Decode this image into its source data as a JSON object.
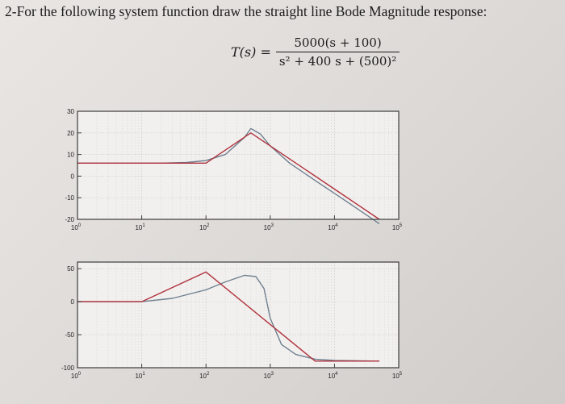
{
  "question": "2-For the following system function draw the straight line Bode Magnitude response:",
  "transfer_function": {
    "lhs": "T(s) =",
    "numerator": "5000(s + 100)",
    "denominator": "s² + 400 s + (500)²"
  },
  "colors": {
    "exact": "#6f8091",
    "asymptote": "#b0323e",
    "frame": "#3c3c3c",
    "grid": "#c8c8c8"
  },
  "chart_data": [
    {
      "type": "line",
      "xscale": "log",
      "xlim": [
        1,
        100000
      ],
      "ylim": [
        -20,
        30
      ],
      "x_ticks": [
        "10",
        "10",
        "10",
        "10",
        "10",
        "10"
      ],
      "x_tick_exponents": [
        "0",
        "1",
        "2",
        "3",
        "4",
        "5"
      ],
      "y_ticks": [
        "30",
        "20",
        "10",
        "0",
        "-10",
        "-20"
      ],
      "grid": true,
      "series": [
        {
          "x": [
            1,
            20,
            50,
            100,
            200,
            400,
            500,
            700,
            1000,
            2000,
            5000,
            10000,
            20000,
            50000
          ],
          "values": [
            6,
            6,
            6.3,
            7.2,
            10,
            18,
            22,
            19.5,
            14,
            6,
            -2,
            -8,
            -14,
            -22
          ]
        },
        {
          "x": [
            1,
            100,
            500,
            1000,
            10000,
            50000
          ],
          "values": [
            6,
            6,
            20,
            14,
            -6,
            -20
          ]
        }
      ]
    },
    {
      "type": "line",
      "xscale": "log",
      "xlim": [
        1,
        100000
      ],
      "ylim": [
        -100,
        60
      ],
      "x_ticks": [
        "10",
        "10",
        "10",
        "10",
        "10",
        "10"
      ],
      "x_tick_exponents": [
        "0",
        "1",
        "2",
        "3",
        "4",
        "5"
      ],
      "y_ticks": [
        "50",
        "0",
        "-50",
        "-100"
      ],
      "grid": true,
      "series": [
        {
          "x": [
            1,
            10,
            30,
            100,
            200,
            400,
            600,
            800,
            1000,
            1500,
            2500,
            5000,
            10000,
            50000
          ],
          "values": [
            0,
            0,
            5,
            18,
            30,
            40,
            38,
            20,
            -25,
            -65,
            -80,
            -87,
            -89,
            -90
          ]
        },
        {
          "x": [
            1,
            10,
            100,
            5000,
            50000
          ],
          "values": [
            0,
            0,
            45,
            -90,
            -90
          ]
        }
      ]
    }
  ]
}
